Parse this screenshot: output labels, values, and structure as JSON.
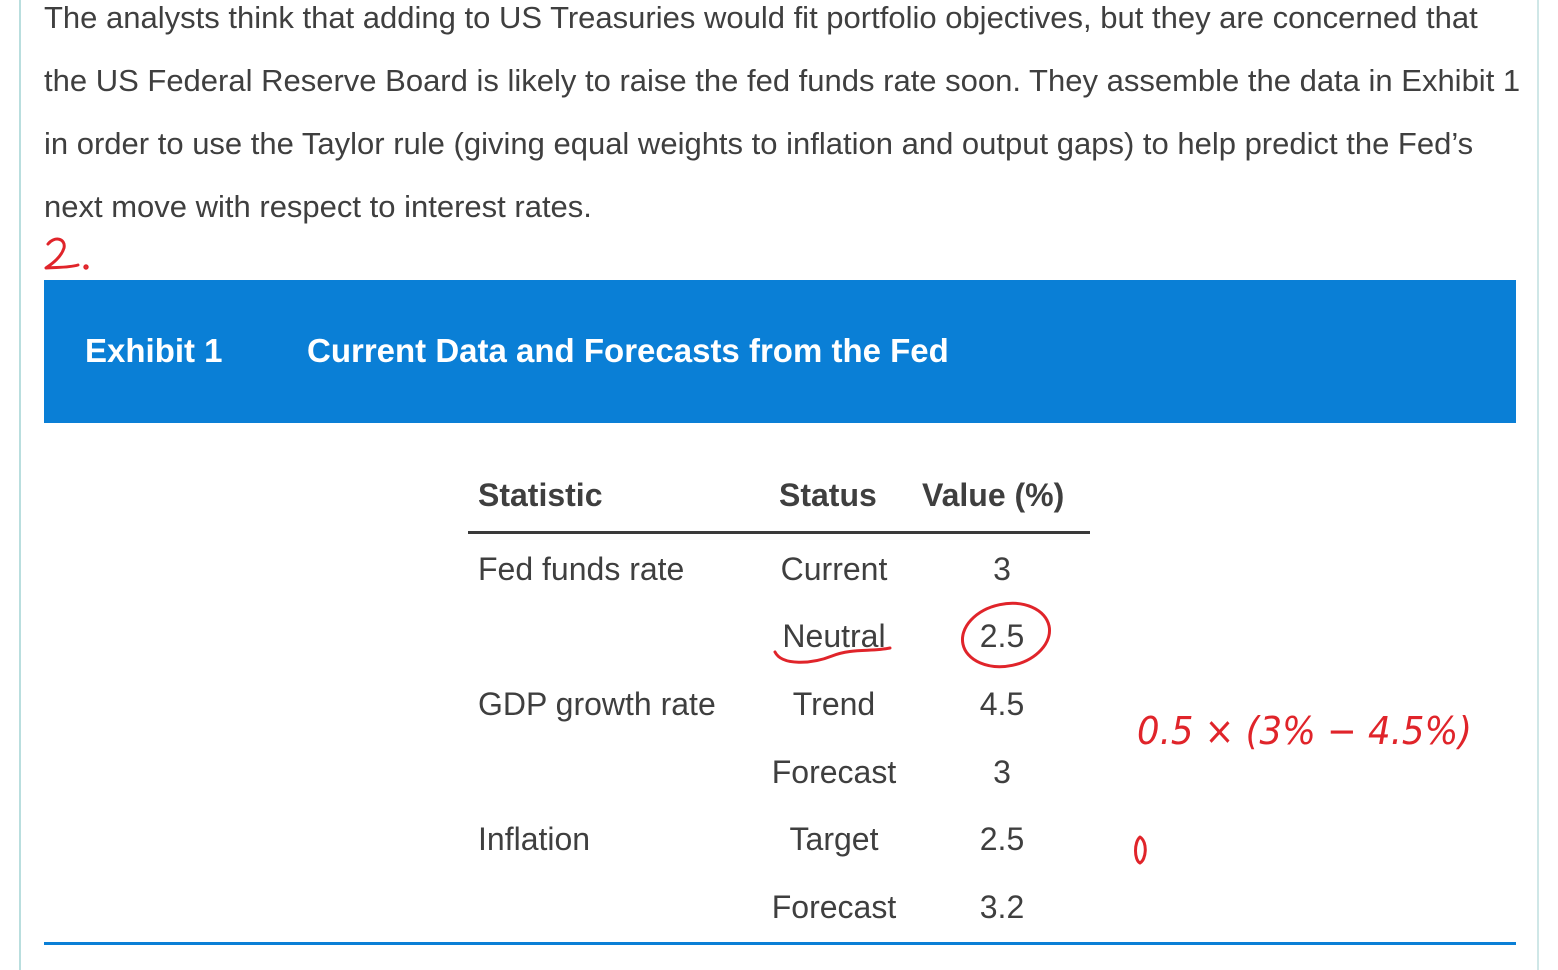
{
  "intro_text": "The analysts think that adding to US Treasuries would fit portfolio objectives, but they are concerned that the US Federal Reserve Board is likely to raise the fed funds rate soon. They assemble the data in Exhibit 1 in order to use the Taylor rule (giving equal weights to inflation and output gaps) to help predict the Fed’s next move with respect to interest rates.",
  "exhibit": {
    "label": "Exhibit 1",
    "title": "Current Data and Forecasts from the Fed",
    "accent_color": "#0a7fd6"
  },
  "table": {
    "headers": [
      "Statistic",
      "Status",
      "Value (%)"
    ],
    "rows": [
      {
        "statistic": "Fed funds rate",
        "status": "Current",
        "value": "3"
      },
      {
        "statistic": "",
        "status": "Neutral",
        "value": "2.5"
      },
      {
        "statistic": "GDP growth rate",
        "status": "Trend",
        "value": "4.5"
      },
      {
        "statistic": "",
        "status": "Forecast",
        "value": "3"
      },
      {
        "statistic": "Inflation",
        "status": "Target",
        "value": "2.5"
      },
      {
        "statistic": "",
        "status": "Forecast",
        "value": "3.2"
      }
    ]
  },
  "annotations": {
    "color": "#e0242a",
    "marker": "2.",
    "formula": "0.5 × (3% − 4.5%)",
    "zero": "0"
  }
}
